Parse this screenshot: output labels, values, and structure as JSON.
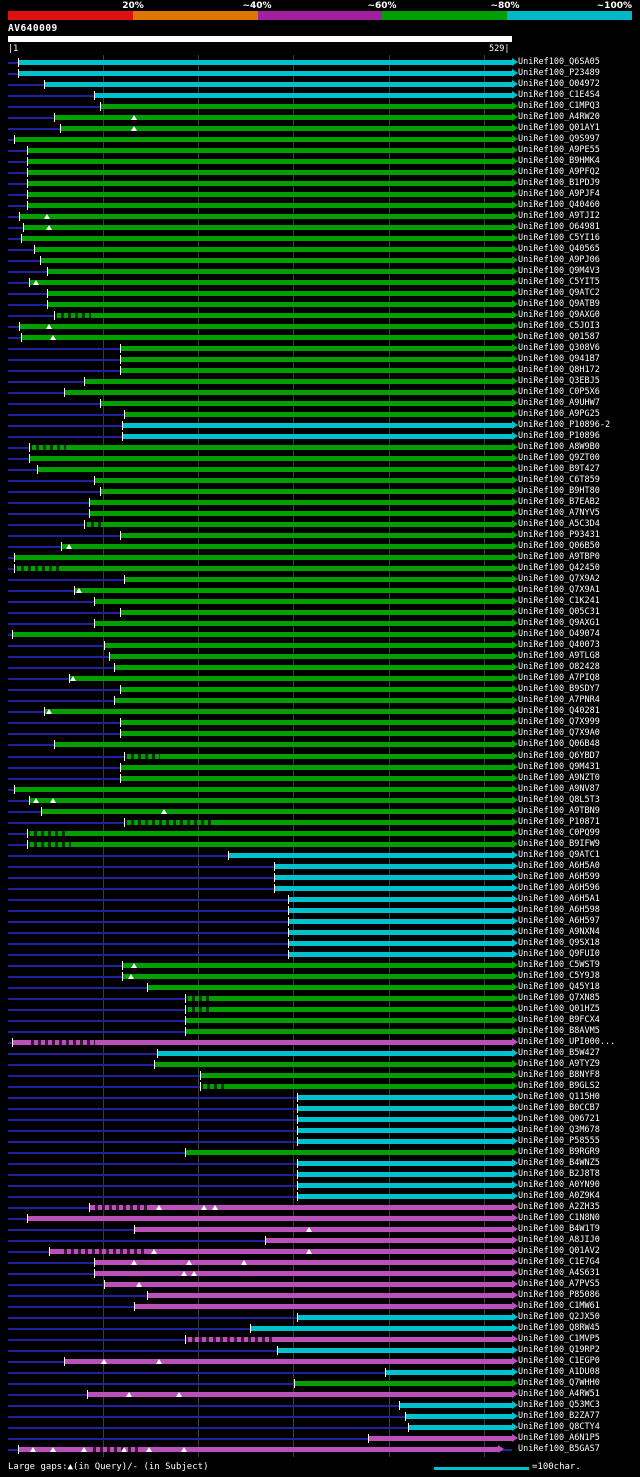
{
  "colors": {
    "green": "#00a000",
    "cyan": "#00c2cc",
    "magenta": "#bb50bb",
    "track_navy": "#2020a0",
    "grid_gray": "#3c3c3c",
    "background": "#000000",
    "text": "#ffffff"
  },
  "chart_data": {
    "type": "bar",
    "subtype": "blast-hit-alignment-overview",
    "orientation": "horizontal",
    "query": {
      "name": "AV640009",
      "length": 529,
      "start_label": "|1",
      "end_label": "529|"
    },
    "scale": {
      "labels": [
        "20%",
        "~40%",
        "~60%",
        "~80%",
        "~100%"
      ],
      "colors": [
        "#dd1111",
        "#dd7700",
        "#a020a0",
        "#00a000",
        "#00b8c8"
      ]
    },
    "xlim": [
      1,
      529
    ],
    "grid_ticks": [
      100,
      200,
      300,
      400,
      500
    ],
    "legend": {
      "gaps_text": "Large gaps:▲(in Query)/- (in Subject)",
      "scale_label": "=100char.",
      "scale_chars": 100
    },
    "hits": [
      {
        "label": "UniRef100_Q6SA05",
        "color": "cyan",
        "start": 11
      },
      {
        "label": "UniRef100_P23489",
        "color": "cyan",
        "start": 11
      },
      {
        "label": "UniRef100_O04972",
        "color": "cyan",
        "start": 39
      },
      {
        "label": "UniRef100_C1E4S4",
        "color": "cyan",
        "start": 91
      },
      {
        "label": "UniRef100_C1MPQ3",
        "color": "green",
        "start": 97
      },
      {
        "label": "UniRef100_A4RW20",
        "color": "green",
        "start": 49,
        "triangles": [
          133
        ]
      },
      {
        "label": "UniRef100_Q01AY1",
        "color": "green",
        "start": 55,
        "triangles": [
          133
        ]
      },
      {
        "label": "UniRef100_Q9S997",
        "color": "green",
        "start": 7
      },
      {
        "label": "UniRef100_A9PE55",
        "color": "green",
        "start": 21
      },
      {
        "label": "UniRef100_B9HMK4",
        "color": "green",
        "start": 21
      },
      {
        "label": "UniRef100_A9PFQ2",
        "color": "green",
        "start": 21
      },
      {
        "label": "UniRef100_B1PDJ9",
        "color": "green",
        "start": 21
      },
      {
        "label": "UniRef100_A9PJF4",
        "color": "green",
        "start": 21
      },
      {
        "label": "UniRef100_Q40460",
        "color": "green",
        "start": 21
      },
      {
        "label": "UniRef100_A9TJI2",
        "color": "green",
        "start": 13,
        "triangles": [
          42
        ]
      },
      {
        "label": "UniRef100_O64981",
        "color": "green",
        "start": 17,
        "triangles": [
          44
        ]
      },
      {
        "label": "UniRef100_C5YI16",
        "color": "green",
        "start": 15
      },
      {
        "label": "UniRef100_Q40565",
        "color": "green",
        "start": 28
      },
      {
        "label": "UniRef100_A9PJ06",
        "color": "green",
        "start": 34
      },
      {
        "label": "UniRef100_Q9M4V3",
        "color": "green",
        "start": 42
      },
      {
        "label": "UniRef100_C5YIT5",
        "color": "green",
        "start": 23,
        "triangles": [
          31
        ]
      },
      {
        "label": "UniRef100_Q9ATC2",
        "color": "green",
        "start": 42
      },
      {
        "label": "UniRef100_Q9ATB9",
        "color": "green",
        "start": 42
      },
      {
        "label": "UniRef100_Q9AXG0",
        "color": "green",
        "start": 49,
        "gaps": [
          [
            49,
            88
          ]
        ]
      },
      {
        "label": "UniRef100_C5JOI3",
        "color": "green",
        "start": 13,
        "triangles": [
          44
        ]
      },
      {
        "label": "UniRef100_Q01587",
        "color": "green",
        "start": 15,
        "triangles": [
          49
        ]
      },
      {
        "label": "UniRef100_Q308V6",
        "color": "green",
        "start": 118
      },
      {
        "label": "UniRef100_Q941B7",
        "color": "green",
        "start": 118
      },
      {
        "label": "UniRef100_Q8H172",
        "color": "green",
        "start": 118
      },
      {
        "label": "UniRef100_Q3EBJ5",
        "color": "green",
        "start": 81
      },
      {
        "label": "UniRef100_C0P5X6",
        "color": "green",
        "start": 60
      },
      {
        "label": "UniRef100_A9UHW7",
        "color": "green",
        "start": 97
      },
      {
        "label": "UniRef100_A9PG25",
        "color": "green",
        "start": 123
      },
      {
        "label": "UniRef100_P10896-2",
        "color": "cyan",
        "start": 120
      },
      {
        "label": "UniRef100_P10896",
        "color": "cyan",
        "start": 120
      },
      {
        "label": "UniRef100_A8W9B0",
        "color": "green",
        "start": 23,
        "gaps": [
          [
            23,
            62
          ]
        ]
      },
      {
        "label": "UniRef100_Q9ZT00",
        "color": "green",
        "start": 23
      },
      {
        "label": "UniRef100_B9T427",
        "color": "green",
        "start": 31
      },
      {
        "label": "UniRef100_C6T859",
        "color": "green",
        "start": 91
      },
      {
        "label": "UniRef100_B9HT80",
        "color": "green",
        "start": 97
      },
      {
        "label": "UniRef100_B7EAB2",
        "color": "green",
        "start": 86
      },
      {
        "label": "UniRef100_A7NYV5",
        "color": "green",
        "start": 86
      },
      {
        "label": "UniRef100_A5C3D4",
        "color": "green",
        "start": 81,
        "gaps": [
          [
            81,
            102
          ]
        ]
      },
      {
        "label": "UniRef100_P93431",
        "color": "green",
        "start": 118
      },
      {
        "label": "UniRef100_Q06B50",
        "color": "green",
        "start": 57,
        "triangles": [
          65
        ]
      },
      {
        "label": "UniRef100_A9TBP0",
        "color": "green",
        "start": 7
      },
      {
        "label": "UniRef100_Q42450",
        "color": "green",
        "start": 7,
        "gaps": [
          [
            7,
            57
          ]
        ]
      },
      {
        "label": "UniRef100_Q7X9A2",
        "color": "green",
        "start": 123
      },
      {
        "label": "UniRef100_Q7X9A1",
        "color": "green",
        "start": 70,
        "triangles": [
          76
        ]
      },
      {
        "label": "UniRef100_C1K241",
        "color": "green",
        "start": 91
      },
      {
        "label": "UniRef100_Q05C31",
        "color": "green",
        "start": 118
      },
      {
        "label": "UniRef100_Q9AXG1",
        "color": "green",
        "start": 91
      },
      {
        "label": "UniRef100_O49074",
        "color": "green",
        "start": 5
      },
      {
        "label": "UniRef100_Q40073",
        "color": "green",
        "start": 102
      },
      {
        "label": "UniRef100_A9TLG8",
        "color": "green",
        "start": 107
      },
      {
        "label": "UniRef100_O82428",
        "color": "green",
        "start": 112
      },
      {
        "label": "UniRef100_A7PIQ8",
        "color": "green",
        "start": 65,
        "triangles": [
          70
        ]
      },
      {
        "label": "UniRef100_B9SDY7",
        "color": "green",
        "start": 118
      },
      {
        "label": "UniRef100_A7PNR4",
        "color": "green",
        "start": 112
      },
      {
        "label": "UniRef100_Q40281",
        "color": "green",
        "start": 39,
        "triangles": [
          44
        ]
      },
      {
        "label": "UniRef100_Q7X999",
        "color": "green",
        "start": 118
      },
      {
        "label": "UniRef100_Q7X9A0",
        "color": "green",
        "start": 118
      },
      {
        "label": "UniRef100_Q06B48",
        "color": "green",
        "start": 49
      },
      {
        "label": "UniRef100_Q6YBD7",
        "color": "green",
        "start": 123,
        "gaps": [
          [
            123,
            160
          ]
        ]
      },
      {
        "label": "UniRef100_Q9M431",
        "color": "green",
        "start": 118
      },
      {
        "label": "UniRef100_A9NZT0",
        "color": "green",
        "start": 118
      },
      {
        "label": "UniRef100_A9NV87",
        "color": "green",
        "start": 7
      },
      {
        "label": "UniRef100_Q8L5T3",
        "color": "green",
        "start": 23,
        "triangles": [
          31,
          49
        ]
      },
      {
        "label": "UniRef100_A9TBN9",
        "color": "green",
        "start": 36,
        "triangles": [
          165
        ]
      },
      {
        "label": "UniRef100_P10871",
        "color": "green",
        "start": 123,
        "gaps": [
          [
            123,
            215
          ]
        ]
      },
      {
        "label": "UniRef100_C0PQ99",
        "color": "green",
        "start": 21,
        "gaps": [
          [
            21,
            62
          ]
        ]
      },
      {
        "label": "UniRef100_B9IFW9",
        "color": "green",
        "start": 21,
        "gaps": [
          [
            21,
            67
          ]
        ]
      },
      {
        "label": "UniRef100_Q9ATC1",
        "color": "cyan",
        "start": 231
      },
      {
        "label": "UniRef100_A6H5A0",
        "color": "cyan",
        "start": 280
      },
      {
        "label": "UniRef100_A6H599",
        "color": "cyan",
        "start": 280
      },
      {
        "label": "UniRef100_A6H596",
        "color": "cyan",
        "start": 280
      },
      {
        "label": "UniRef100_A6H5A1",
        "color": "cyan",
        "start": 294
      },
      {
        "label": "UniRef100_A6H598",
        "color": "cyan",
        "start": 294
      },
      {
        "label": "UniRef100_A6H597",
        "color": "cyan",
        "start": 294
      },
      {
        "label": "UniRef100_A9NXN4",
        "color": "cyan",
        "start": 294
      },
      {
        "label": "UniRef100_Q9SX18",
        "color": "cyan",
        "start": 294
      },
      {
        "label": "UniRef100_Q9FUI0",
        "color": "cyan",
        "start": 294
      },
      {
        "label": "UniRef100_C5WST9",
        "color": "green",
        "start": 120,
        "triangles": [
          133
        ]
      },
      {
        "label": "UniRef100_C5Y9J8",
        "color": "green",
        "start": 120,
        "triangles": [
          130
        ]
      },
      {
        "label": "UniRef100_Q45Y18",
        "color": "green",
        "start": 147
      },
      {
        "label": "UniRef100_Q7XN85",
        "color": "green",
        "start": 186,
        "gaps": [
          [
            186,
            212
          ]
        ]
      },
      {
        "label": "UniRef100_Q01HZ5",
        "color": "green",
        "start": 186,
        "gaps": [
          [
            186,
            215
          ]
        ]
      },
      {
        "label": "UniRef100_B9FCX4",
        "color": "green",
        "start": 186
      },
      {
        "label": "UniRef100_B8AVM5",
        "color": "green",
        "start": 186
      },
      {
        "label": "UniRef100_UPI000...",
        "color": "magenta",
        "start": 5,
        "gaps": [
          [
            25,
            92
          ]
        ]
      },
      {
        "label": "UniRef100_B5W427",
        "color": "cyan",
        "start": 157
      },
      {
        "label": "UniRef100_A9TYZ9",
        "color": "green",
        "start": 154
      },
      {
        "label": "UniRef100_B8NYF8",
        "color": "green",
        "start": 202
      },
      {
        "label": "UniRef100_B9GLS2",
        "color": "green",
        "start": 202,
        "gaps": [
          [
            202,
            232
          ]
        ]
      },
      {
        "label": "UniRef100_Q115H0",
        "color": "cyan",
        "start": 304
      },
      {
        "label": "UniRef100_B0CCB7",
        "color": "cyan",
        "start": 304
      },
      {
        "label": "UniRef100_Q06721",
        "color": "cyan",
        "start": 304
      },
      {
        "label": "UniRef100_Q3M678",
        "color": "cyan",
        "start": 304
      },
      {
        "label": "UniRef100_P58555",
        "color": "cyan",
        "start": 304
      },
      {
        "label": "UniRef100_B9RGR9",
        "color": "green",
        "start": 186
      },
      {
        "label": "UniRef100_B4WNZ5",
        "color": "cyan",
        "start": 304
      },
      {
        "label": "UniRef100_B2J8T8",
        "color": "cyan",
        "start": 304
      },
      {
        "label": "UniRef100_A0YN90",
        "color": "cyan",
        "start": 304
      },
      {
        "label": "UniRef100_A0Z9K4",
        "color": "cyan",
        "start": 304
      },
      {
        "label": "UniRef100_A2ZH35",
        "color": "magenta",
        "start": 86,
        "triangles": [
          160,
          207,
          218
        ],
        "gaps": [
          [
            92,
            150
          ]
        ]
      },
      {
        "label": "UniRef100_C1N8N0",
        "color": "magenta",
        "start": 21
      },
      {
        "label": "UniRef100_B4W1T9",
        "color": "magenta",
        "start": 133,
        "triangles": [
          317
        ]
      },
      {
        "label": "UniRef100_A8JIJ0",
        "color": "magenta",
        "start": 270
      },
      {
        "label": "UniRef100_Q01AV2",
        "color": "magenta",
        "start": 44,
        "triangles": [
          154,
          317
        ],
        "gaps": [
          [
            60,
            145
          ]
        ]
      },
      {
        "label": "UniRef100_C1E7G4",
        "color": "magenta",
        "start": 91,
        "triangles": [
          133,
          191,
          249
        ]
      },
      {
        "label": "UniRef100_A4S631",
        "color": "magenta",
        "start": 91,
        "triangles": [
          186,
          196
        ]
      },
      {
        "label": "UniRef100_A7PVS5",
        "color": "magenta",
        "start": 102,
        "triangles": [
          139
        ]
      },
      {
        "label": "UniRef100_P85086",
        "color": "magenta",
        "start": 147
      },
      {
        "label": "UniRef100_C1MW61",
        "color": "magenta",
        "start": 133
      },
      {
        "label": "UniRef100_Q2JX50",
        "color": "cyan",
        "start": 304
      },
      {
        "label": "UniRef100_Q8RW45",
        "color": "cyan",
        "start": 254
      },
      {
        "label": "UniRef100_C1MVP5",
        "color": "magenta",
        "start": 186,
        "gaps": [
          [
            186,
            278
          ]
        ]
      },
      {
        "label": "UniRef100_Q19RP2",
        "color": "cyan",
        "start": 283
      },
      {
        "label": "UniRef100_C1EGP0",
        "color": "magenta",
        "start": 60,
        "triangles": [
          102,
          160
        ]
      },
      {
        "label": "UniRef100_A1DU08",
        "color": "cyan",
        "start": 396
      },
      {
        "label": "UniRef100_Q7WHH0",
        "color": "green",
        "start": 301
      },
      {
        "label": "UniRef100_A4RW51",
        "color": "magenta",
        "start": 84,
        "triangles": [
          128,
          181
        ]
      },
      {
        "label": "UniRef100_Q53MC3",
        "color": "cyan",
        "start": 411
      },
      {
        "label": "UniRef100_B2ZA77",
        "color": "cyan",
        "start": 417
      },
      {
        "label": "UniRef100_Q8CTY4",
        "color": "cyan",
        "start": 420
      },
      {
        "label": "UniRef100_A6N1P5",
        "color": "magenta",
        "start": 378
      },
      {
        "label": "UniRef100_B5GAS7",
        "color": "magenta",
        "start": 11,
        "end": 514,
        "triangles": [
          28,
          49,
          81,
          123,
          149,
          186
        ],
        "gaps": [
          [
            90,
            140
          ]
        ]
      }
    ]
  }
}
